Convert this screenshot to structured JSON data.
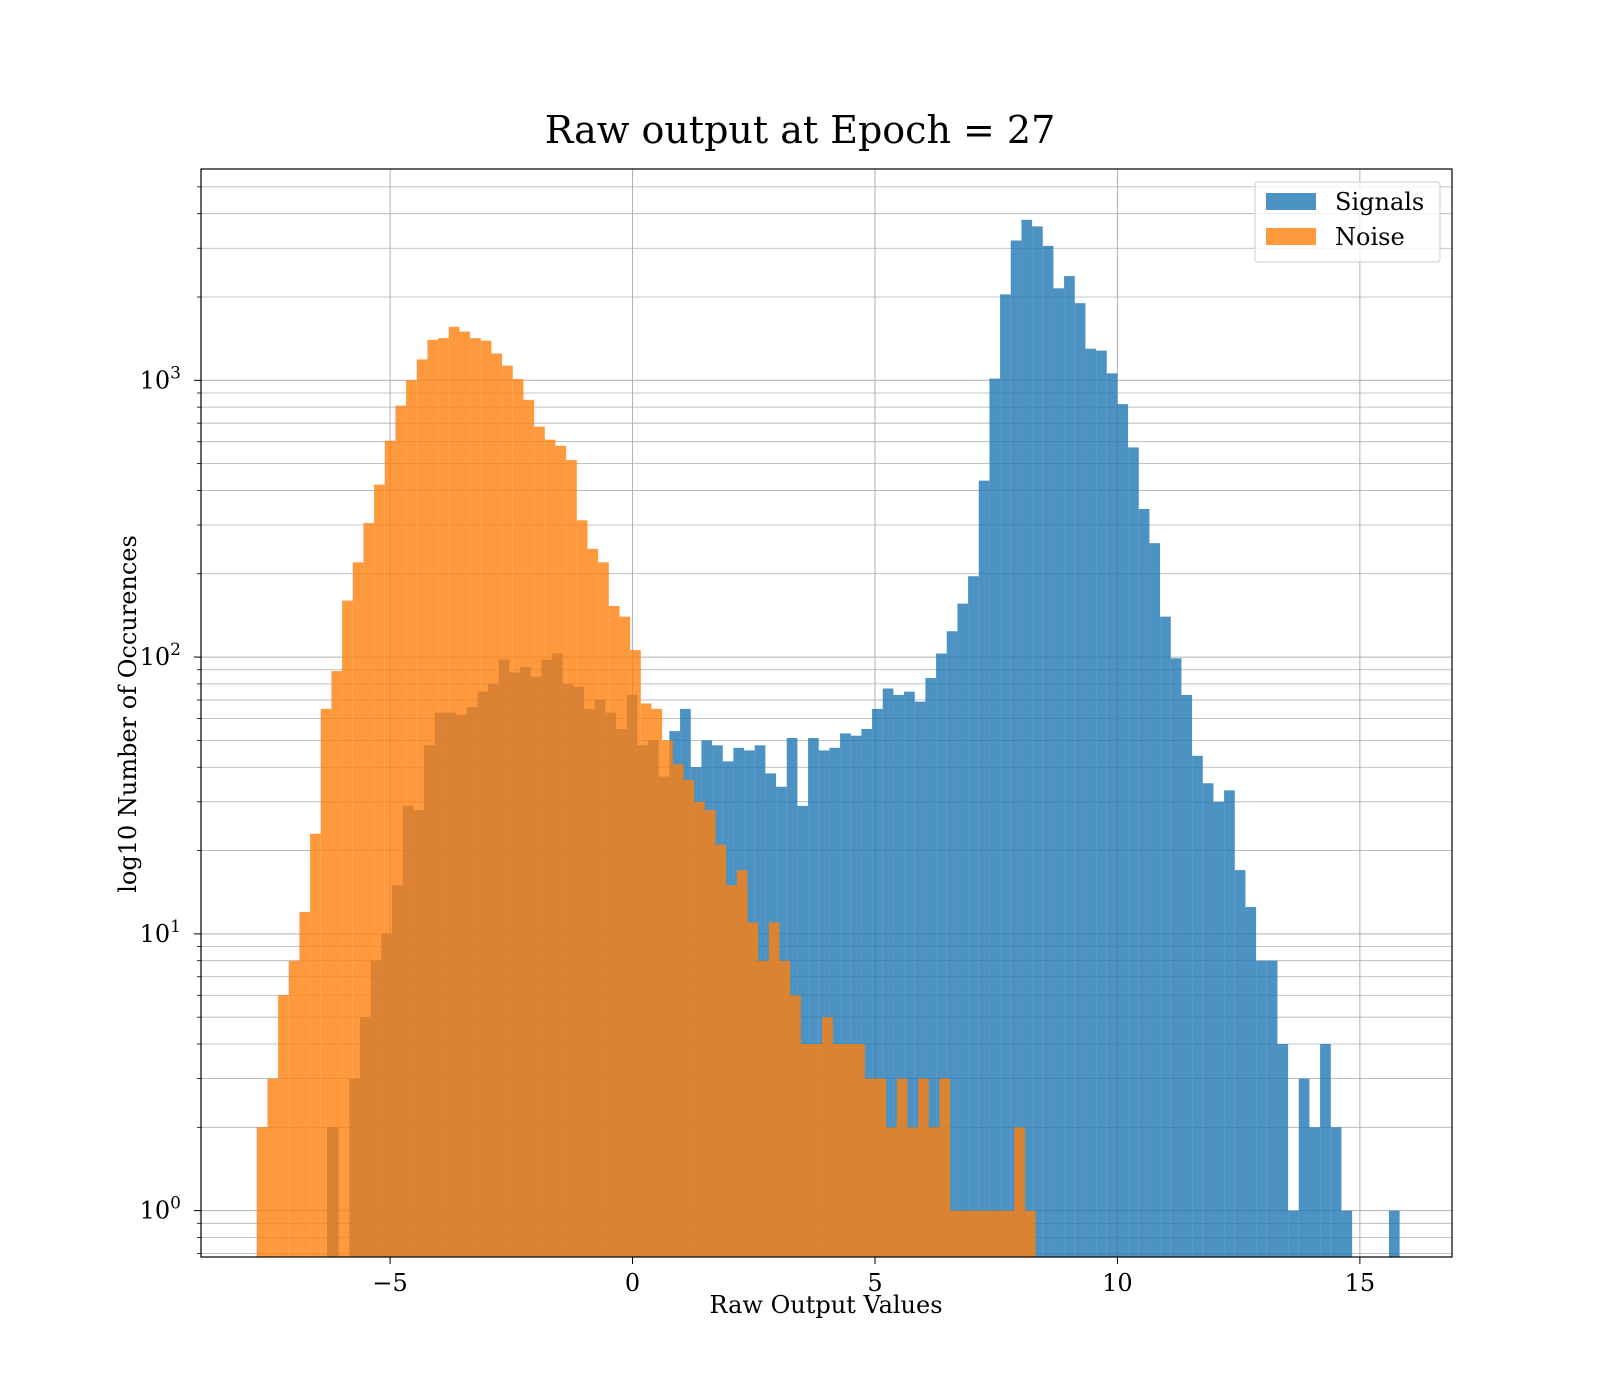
{
  "chart_data": {
    "type": "bar",
    "title": "Raw output at Epoch = 27",
    "xlabel": "Raw Output Values",
    "ylabel": "log10 Number of Occurences",
    "yscale": "log",
    "xlim": [
      -8.9,
      16.9
    ],
    "ylim": [
      0.68,
      5800
    ],
    "grid": "on (major and minor)",
    "legend_position": "top-right",
    "xticks": [
      {
        "value": -5,
        "label": "−5"
      },
      {
        "value": 0,
        "label": "0"
      },
      {
        "value": 5,
        "label": "5"
      },
      {
        "value": 10,
        "label": "10"
      },
      {
        "value": 15,
        "label": "15"
      }
    ],
    "yticks": [
      {
        "value": 1,
        "base": "10",
        "exp": "0"
      },
      {
        "value": 10,
        "base": "10",
        "exp": "1"
      },
      {
        "value": 100,
        "base": "10",
        "exp": "2"
      },
      {
        "value": 1000,
        "base": "10",
        "exp": "3"
      }
    ],
    "series": [
      {
        "name": "Signals",
        "color": "#1f77b4",
        "opacity": 0.8,
        "bins": [
          [
            -6.3,
            -6.06,
            2
          ],
          [
            -5.84,
            -5.62,
            3
          ],
          [
            -5.62,
            -5.4,
            5
          ],
          [
            -5.4,
            -5.18,
            8
          ],
          [
            -5.18,
            -4.96,
            10
          ],
          [
            -4.96,
            -4.74,
            15
          ],
          [
            -4.74,
            -4.52,
            29
          ],
          [
            -4.52,
            -4.3,
            28
          ],
          [
            -4.3,
            -4.08,
            48
          ],
          [
            -4.08,
            -3.86,
            63
          ],
          [
            -3.86,
            -3.64,
            63
          ],
          [
            -3.64,
            -3.42,
            62
          ],
          [
            -3.42,
            -3.2,
            66
          ],
          [
            -3.2,
            -2.98,
            75
          ],
          [
            -2.98,
            -2.76,
            80
          ],
          [
            -2.76,
            -2.54,
            98
          ],
          [
            -2.54,
            -2.32,
            88
          ],
          [
            -2.32,
            -2.1,
            92
          ],
          [
            -2.1,
            -1.88,
            85
          ],
          [
            -1.88,
            -1.66,
            98
          ],
          [
            -1.66,
            -1.44,
            103
          ],
          [
            -1.44,
            -1.22,
            80
          ],
          [
            -1.22,
            -1.0,
            78
          ],
          [
            -1.0,
            -0.78,
            65
          ],
          [
            -0.78,
            -0.56,
            70
          ],
          [
            -0.56,
            -0.34,
            63
          ],
          [
            -0.34,
            -0.12,
            55
          ],
          [
            -0.12,
            0.1,
            73
          ],
          [
            0.1,
            0.32,
            48
          ],
          [
            0.32,
            0.54,
            50
          ],
          [
            0.54,
            0.76,
            37
          ],
          [
            0.76,
            0.98,
            54
          ],
          [
            0.98,
            1.2,
            65
          ],
          [
            1.2,
            1.42,
            40
          ],
          [
            1.42,
            1.64,
            50
          ],
          [
            1.64,
            1.86,
            48
          ],
          [
            1.86,
            2.08,
            42
          ],
          [
            2.08,
            2.3,
            47
          ],
          [
            2.3,
            2.52,
            46
          ],
          [
            2.52,
            2.74,
            48
          ],
          [
            2.74,
            2.96,
            38
          ],
          [
            2.96,
            3.18,
            34
          ],
          [
            3.18,
            3.4,
            51
          ],
          [
            3.4,
            3.62,
            29
          ],
          [
            3.62,
            3.84,
            51
          ],
          [
            3.84,
            4.06,
            46
          ],
          [
            4.06,
            4.28,
            47
          ],
          [
            4.28,
            4.5,
            53
          ],
          [
            4.5,
            4.72,
            52
          ],
          [
            4.72,
            4.94,
            55
          ],
          [
            4.94,
            5.16,
            65
          ],
          [
            5.16,
            5.38,
            77
          ],
          [
            5.38,
            5.6,
            73
          ],
          [
            5.6,
            5.82,
            75
          ],
          [
            5.82,
            6.04,
            69
          ],
          [
            6.04,
            6.26,
            84
          ],
          [
            6.26,
            6.48,
            103
          ],
          [
            6.48,
            6.7,
            124
          ],
          [
            6.7,
            6.92,
            156
          ],
          [
            6.92,
            7.14,
            196
          ],
          [
            7.14,
            7.36,
            434
          ],
          [
            7.36,
            7.58,
            1014
          ],
          [
            7.58,
            7.8,
            2044
          ],
          [
            7.8,
            8.02,
            3200
          ],
          [
            8.02,
            8.24,
            3800
          ],
          [
            8.24,
            8.46,
            3600
          ],
          [
            8.46,
            8.68,
            3060
          ],
          [
            8.68,
            8.9,
            2150
          ],
          [
            8.9,
            9.12,
            2380
          ],
          [
            9.12,
            9.34,
            1900
          ],
          [
            9.34,
            9.56,
            1300
          ],
          [
            9.56,
            9.78,
            1280
          ],
          [
            9.78,
            10.0,
            1060
          ],
          [
            10.0,
            10.22,
            820
          ],
          [
            10.22,
            10.44,
            572
          ],
          [
            10.44,
            10.66,
            343
          ],
          [
            10.66,
            10.88,
            258
          ],
          [
            10.88,
            11.1,
            140
          ],
          [
            11.1,
            11.32,
            99
          ],
          [
            11.32,
            11.54,
            73
          ],
          [
            11.54,
            11.76,
            44
          ],
          [
            11.76,
            11.98,
            35
          ],
          [
            11.98,
            12.2,
            30
          ],
          [
            12.2,
            12.42,
            33
          ],
          [
            12.42,
            12.64,
            17
          ],
          [
            12.64,
            12.86,
            12.5
          ],
          [
            12.86,
            13.08,
            8
          ],
          [
            13.08,
            13.3,
            8
          ],
          [
            13.3,
            13.52,
            4
          ],
          [
            13.52,
            13.74,
            1
          ],
          [
            13.74,
            13.96,
            3
          ],
          [
            13.96,
            14.18,
            2
          ],
          [
            14.18,
            14.4,
            4
          ],
          [
            14.4,
            14.62,
            2
          ],
          [
            14.62,
            14.84,
            1
          ],
          [
            15.6,
            15.82,
            1
          ]
        ]
      },
      {
        "name": "Noise",
        "color": "#ff7f0e",
        "opacity": 0.8,
        "bins": [
          [
            -7.75,
            -7.53,
            2
          ],
          [
            -7.53,
            -7.31,
            3
          ],
          [
            -7.31,
            -7.09,
            6
          ],
          [
            -7.09,
            -6.87,
            8
          ],
          [
            -6.87,
            -6.65,
            12
          ],
          [
            -6.65,
            -6.43,
            23
          ],
          [
            -6.43,
            -6.21,
            65
          ],
          [
            -6.21,
            -5.99,
            89
          ],
          [
            -5.99,
            -5.77,
            160
          ],
          [
            -5.77,
            -5.55,
            220
          ],
          [
            -5.55,
            -5.33,
            305
          ],
          [
            -5.33,
            -5.11,
            420
          ],
          [
            -5.11,
            -4.89,
            605
          ],
          [
            -4.89,
            -4.67,
            810
          ],
          [
            -4.67,
            -4.45,
            1000
          ],
          [
            -4.45,
            -4.23,
            1190
          ],
          [
            -4.23,
            -4.01,
            1400
          ],
          [
            -4.01,
            -3.79,
            1420
          ],
          [
            -3.79,
            -3.57,
            1560
          ],
          [
            -3.57,
            -3.35,
            1500
          ],
          [
            -3.35,
            -3.13,
            1420
          ],
          [
            -3.13,
            -2.91,
            1390
          ],
          [
            -2.91,
            -2.69,
            1250
          ],
          [
            -2.69,
            -2.47,
            1130
          ],
          [
            -2.47,
            -2.25,
            1010
          ],
          [
            -2.25,
            -2.03,
            850
          ],
          [
            -2.03,
            -1.81,
            680
          ],
          [
            -1.81,
            -1.59,
            610
          ],
          [
            -1.59,
            -1.37,
            580
          ],
          [
            -1.37,
            -1.15,
            515
          ],
          [
            -1.15,
            -0.93,
            312
          ],
          [
            -0.93,
            -0.71,
            246
          ],
          [
            -0.71,
            -0.49,
            220
          ],
          [
            -0.49,
            -0.27,
            153
          ],
          [
            -0.27,
            -0.05,
            140
          ],
          [
            -0.05,
            0.17,
            106
          ],
          [
            0.17,
            0.39,
            68
          ],
          [
            0.39,
            0.61,
            65
          ],
          [
            0.61,
            0.83,
            50
          ],
          [
            0.83,
            1.05,
            41
          ],
          [
            1.05,
            1.27,
            36
          ],
          [
            1.27,
            1.49,
            30
          ],
          [
            1.49,
            1.71,
            28
          ],
          [
            1.71,
            1.93,
            21
          ],
          [
            1.93,
            2.15,
            15
          ],
          [
            2.15,
            2.37,
            17
          ],
          [
            2.37,
            2.59,
            11
          ],
          [
            2.59,
            2.81,
            8
          ],
          [
            2.81,
            3.03,
            11
          ],
          [
            3.03,
            3.25,
            8
          ],
          [
            3.25,
            3.47,
            6
          ],
          [
            3.47,
            3.69,
            4
          ],
          [
            3.69,
            3.91,
            4
          ],
          [
            3.91,
            4.13,
            5
          ],
          [
            4.13,
            4.35,
            4
          ],
          [
            4.35,
            4.57,
            4
          ],
          [
            4.57,
            4.79,
            4
          ],
          [
            4.79,
            5.01,
            3
          ],
          [
            5.01,
            5.23,
            3
          ],
          [
            5.23,
            5.45,
            2
          ],
          [
            5.45,
            5.67,
            3
          ],
          [
            5.67,
            5.89,
            2
          ],
          [
            5.89,
            6.11,
            3
          ],
          [
            6.11,
            6.33,
            2
          ],
          [
            6.33,
            6.55,
            3
          ],
          [
            6.55,
            6.77,
            1
          ],
          [
            6.77,
            6.99,
            1
          ],
          [
            6.99,
            7.21,
            1
          ],
          [
            7.21,
            7.43,
            1
          ],
          [
            7.43,
            7.65,
            1
          ],
          [
            7.65,
            7.87,
            1
          ],
          [
            7.87,
            8.09,
            2
          ],
          [
            8.09,
            8.31,
            1
          ]
        ]
      }
    ]
  }
}
